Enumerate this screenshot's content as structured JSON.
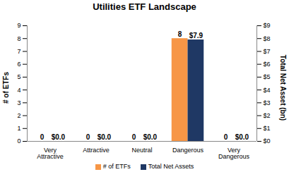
{
  "chart_data": {
    "type": "bar",
    "title": "Utilities ETF Landscape",
    "categories": [
      "Very Attractive",
      "Attractive",
      "Neutral",
      "Dangerous",
      "Very Dangerous"
    ],
    "series": [
      {
        "name": "# of ETFs",
        "color": "#F79646",
        "values": [
          0,
          0,
          0,
          8,
          0
        ]
      },
      {
        "name": "Total Net Assets",
        "color": "#1F3864",
        "values": [
          0.0,
          0.0,
          0.0,
          7.9,
          0.0
        ],
        "value_labels": [
          "$0.0",
          "$0.0",
          "$0.0",
          "$7.9",
          "$0.0"
        ],
        "axis": "y2"
      }
    ],
    "ylabel": "# of ETFs",
    "y2label": "Total Net Asset (bn)",
    "ylim": [
      0,
      9
    ],
    "yticks": [
      0,
      1,
      2,
      3,
      4,
      5,
      6,
      7,
      8,
      9
    ],
    "y2lim": [
      0,
      9
    ],
    "y2ticks": [
      {
        "value": 0,
        "label": "$0"
      },
      {
        "value": 1,
        "label": "$1"
      },
      {
        "value": 2,
        "label": "$2"
      },
      {
        "value": 3,
        "label": "$3"
      },
      {
        "value": 4,
        "label": "$4"
      },
      {
        "value": 5,
        "label": "$5"
      },
      {
        "value": 6,
        "label": "$6"
      },
      {
        "value": 7,
        "label": "$7"
      },
      {
        "value": 8,
        "label": "$8"
      },
      {
        "value": 9,
        "label": "$9"
      }
    ],
    "data_labels": true,
    "legend": "bottom"
  }
}
